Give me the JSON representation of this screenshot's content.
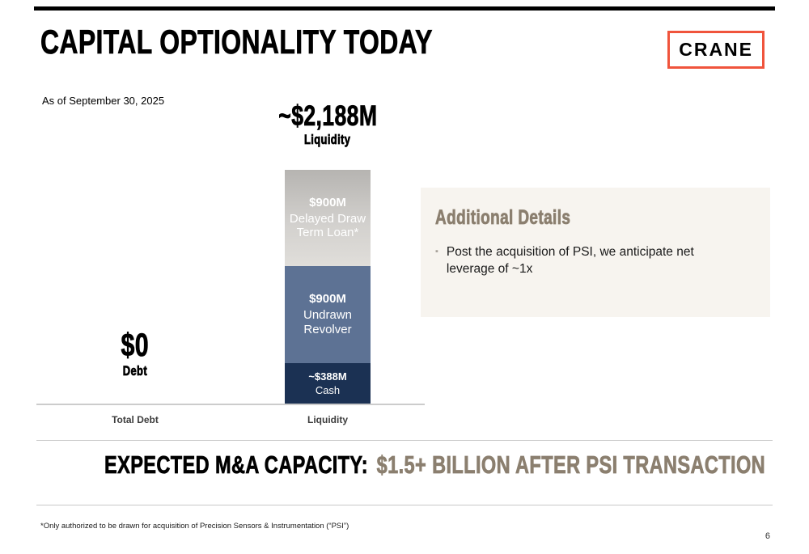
{
  "slide": {
    "title": "CAPITAL OPTIONALITY TODAY",
    "as_of": "As of September 30, 2025",
    "footnote": "*Only authorized to be drawn for acquisition of Precision Sensors & Instrumentation (“PSI”)",
    "page_number": "6"
  },
  "logo": {
    "text": "CRANE",
    "border_color": "#f0543c"
  },
  "chart_data": {
    "type": "bar",
    "title": "",
    "categories": [
      "Total Debt",
      "Liquidity"
    ],
    "ylim": [
      0,
      2188
    ],
    "grid": false,
    "legend": "none",
    "total_debt": {
      "amount": 0,
      "value_label": "$0",
      "caption": "Debt"
    },
    "liquidity": {
      "total_amount": 2188,
      "total_label": "~$2,188M",
      "caption": "Liquidity",
      "segments": [
        {
          "name": "Delayed Draw Term Loan*",
          "value_label": "$900M",
          "amount": 900,
          "background": "linear-gradient(180deg,#b6b4b1 0%,#d2d0cd 55%,#e0deda 100%)",
          "text_color": "#ffffff"
        },
        {
          "name": "Undrawn Revolver",
          "value_label": "$900M",
          "amount": 900,
          "background": "#5d7294",
          "text_color": "#ffffff"
        },
        {
          "name": "Cash",
          "value_label": "~$388M",
          "amount": 388,
          "background": "#1b3153",
          "text_color": "#ffffff"
        }
      ]
    }
  },
  "details_panel": {
    "title": "Additional Details",
    "background": "#f7f4ef",
    "title_color": "#8b7f6f",
    "bullets": [
      "Post the acquisition of PSI, we anticipate net leverage of ~1x"
    ]
  },
  "banner": {
    "label": "EXPECTED M&A CAPACITY:",
    "value": "$1.5+ BILLION AFTER PSI TRANSACTION",
    "value_color": "#8b7f6f"
  }
}
